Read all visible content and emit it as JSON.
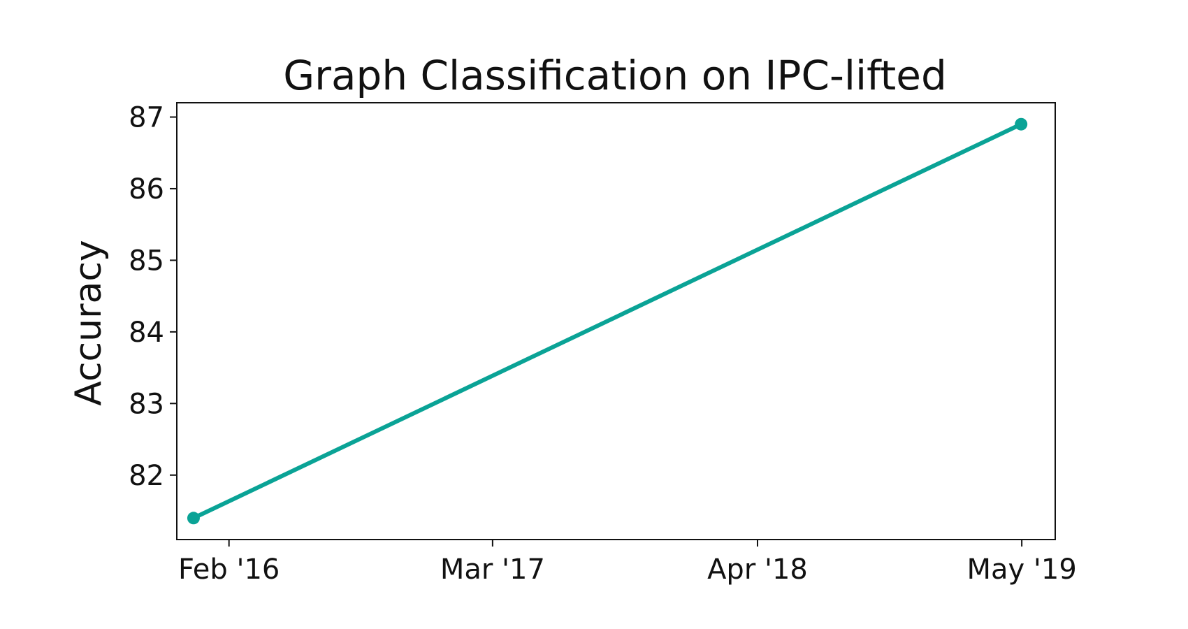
{
  "chart_data": {
    "type": "line",
    "title": "Graph Classification on IPC-lifted",
    "xlabel": "",
    "ylabel": "Accuracy",
    "x_axis_type": "date",
    "xlim": [
      "2015-11-15",
      "2019-06-20"
    ],
    "ylim": [
      81.1,
      87.2
    ],
    "x_ticks": [
      {
        "label": "Feb '16",
        "date": "2016-02-01"
      },
      {
        "label": "Mar '17",
        "date": "2017-03-01"
      },
      {
        "label": "Apr '18",
        "date": "2018-04-01"
      },
      {
        "label": "May '19",
        "date": "2019-05-01"
      }
    ],
    "y_ticks": [
      82,
      83,
      84,
      85,
      86,
      87
    ],
    "grid": false,
    "legend": "none",
    "series": [
      {
        "color": "#0aa396",
        "points": [
          {
            "x": "2015-12-10",
            "y": 81.4
          },
          {
            "x": "2019-04-30",
            "y": 86.9
          }
        ]
      }
    ]
  }
}
